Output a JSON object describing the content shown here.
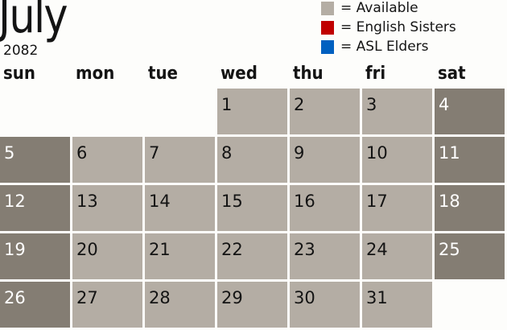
{
  "header": {
    "month": "July",
    "year": "2082"
  },
  "legend": [
    {
      "label": "= Available",
      "color": "#b4ada4"
    },
    {
      "label": "= English Sisters",
      "color": "#c00000"
    },
    {
      "label": "= ASL Elders",
      "color": "#0060c0"
    }
  ],
  "weekdays": [
    "sun",
    "mon",
    "tue",
    "wed",
    "thu",
    "fri",
    "sat"
  ],
  "first_weekday_index": 3,
  "days_in_month": 31,
  "colors": {
    "weekday": "#b4ada4",
    "weekend": "#847d73"
  }
}
